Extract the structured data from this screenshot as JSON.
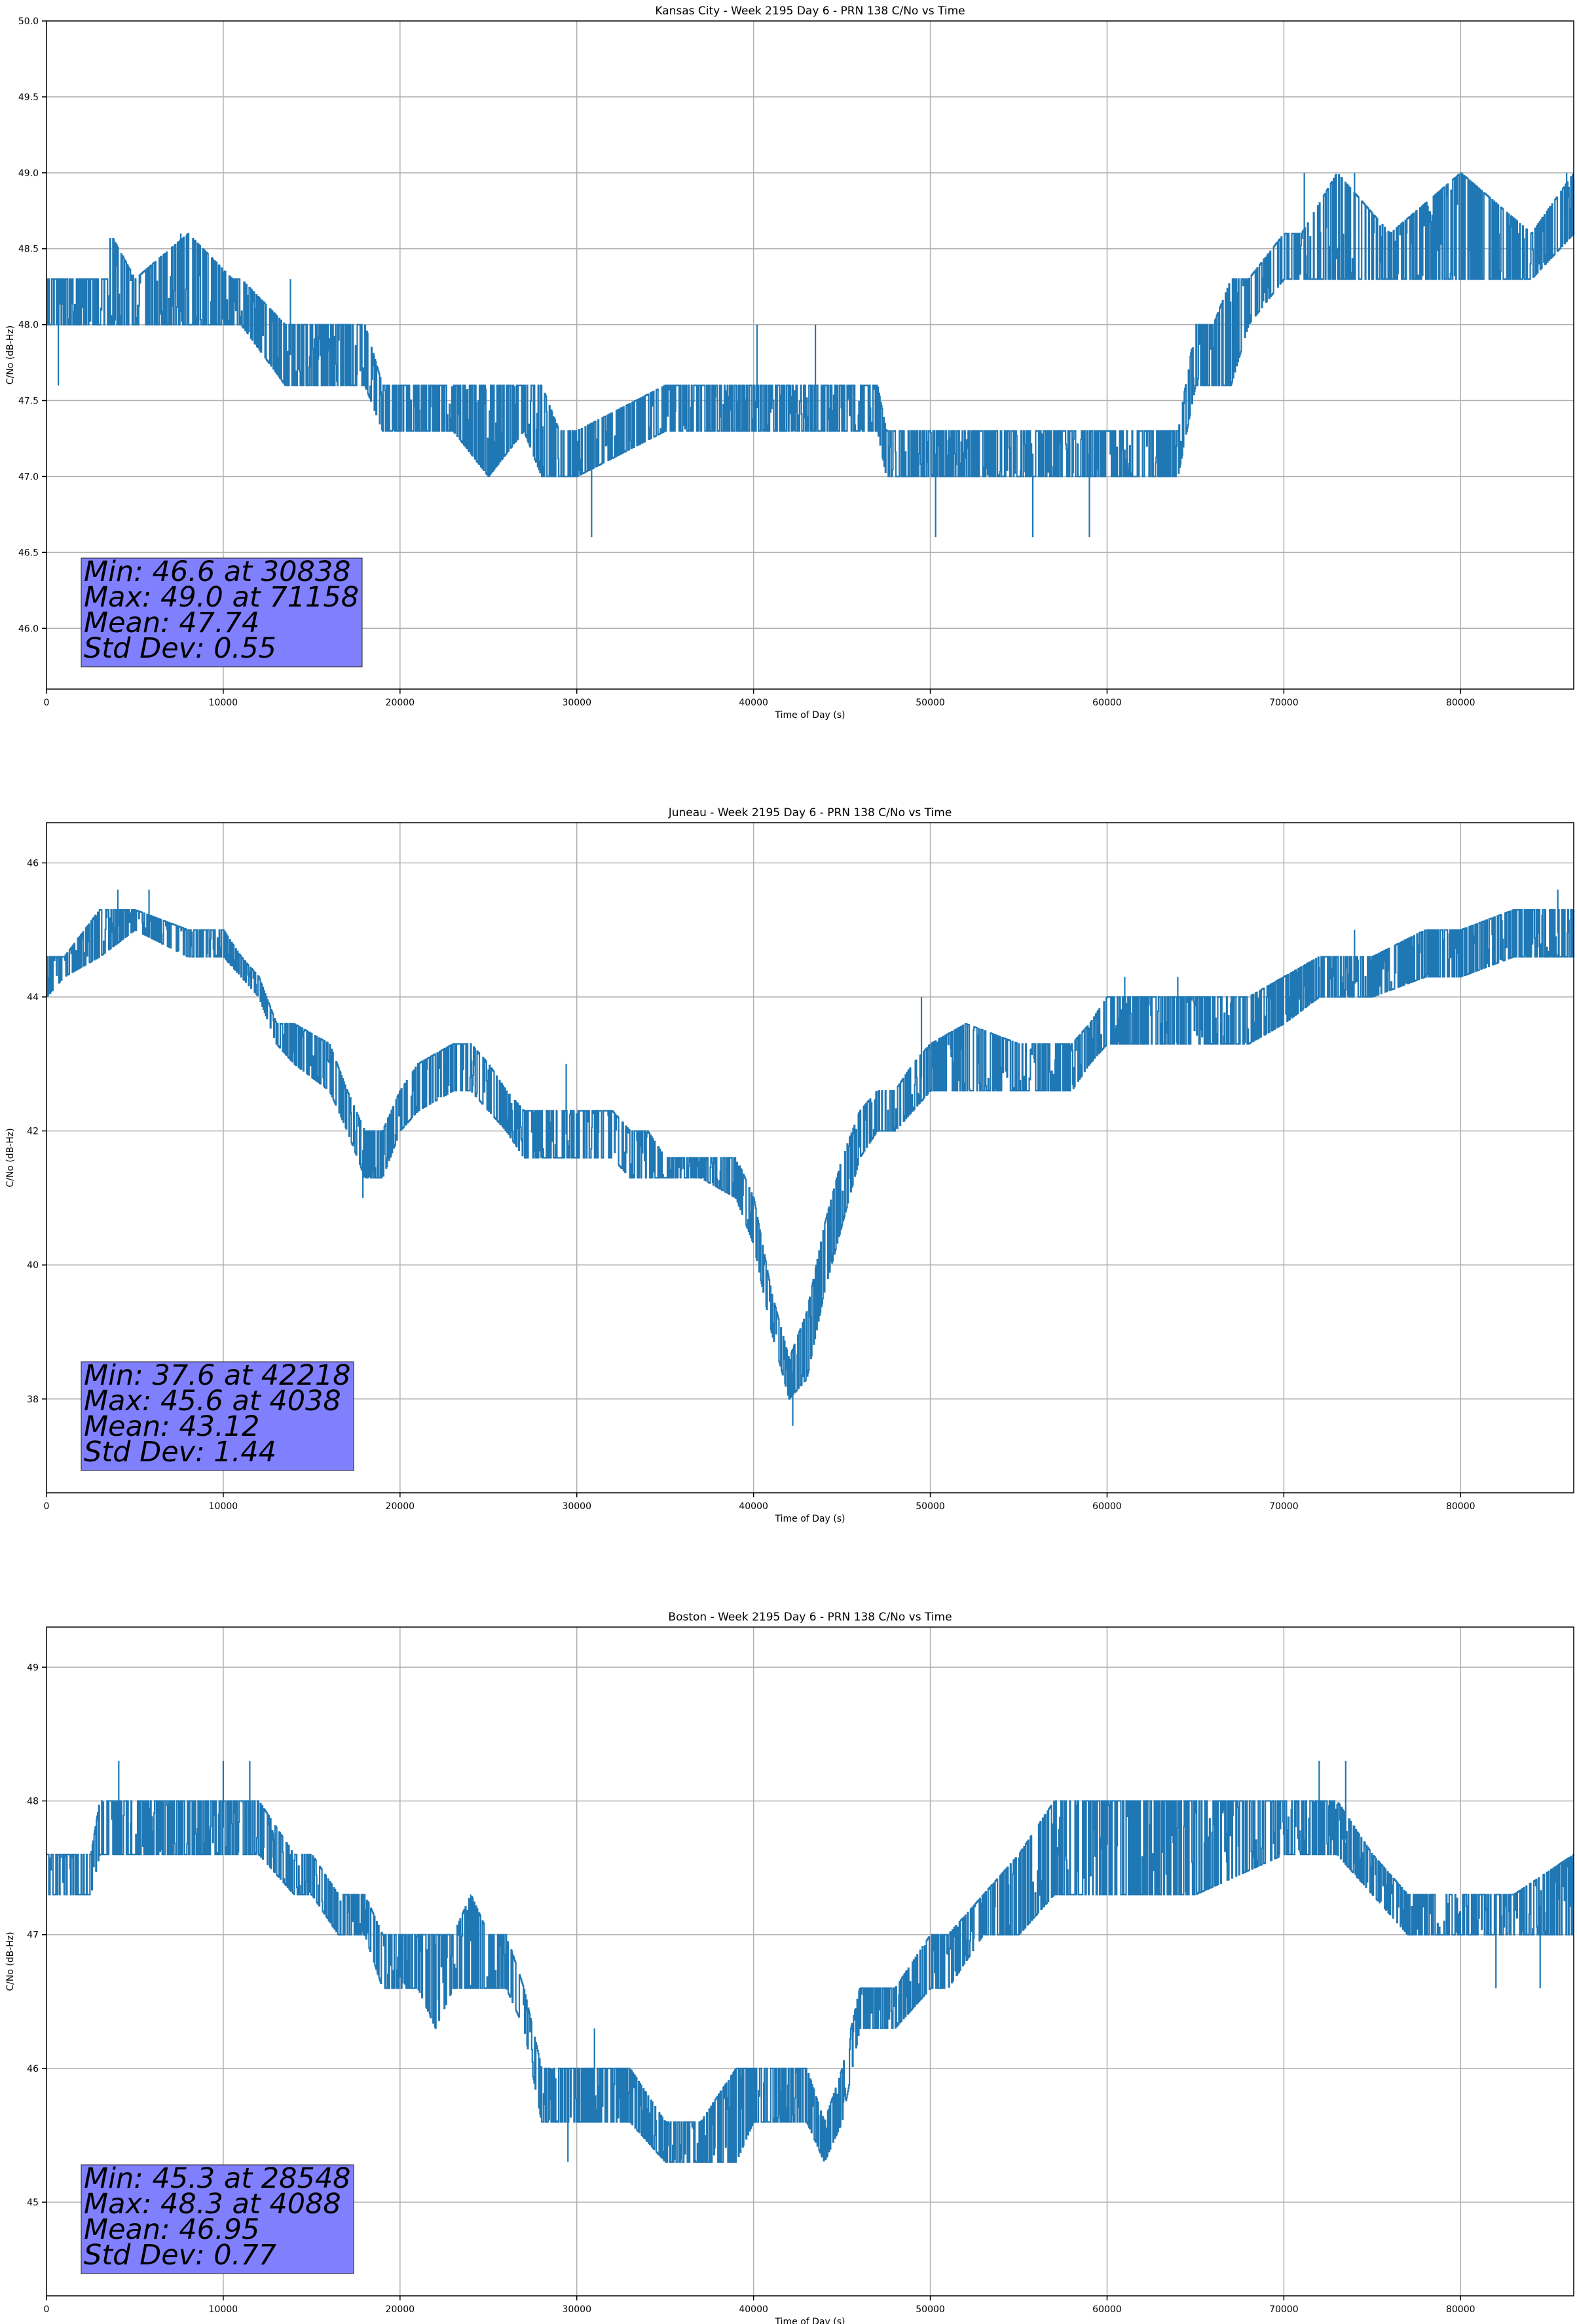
{
  "chart_data": [
    {
      "type": "line",
      "title": "Kansas City - Week 2195 Day 6 - PRN 138 C/No vs Time",
      "xlabel": "Time of Day (s)",
      "ylabel": "C/No (dB-Hz)",
      "xlim": [
        0,
        86400
      ],
      "ylim": [
        45.6,
        50.0
      ],
      "xticks": [
        0,
        10000,
        20000,
        30000,
        40000,
        50000,
        60000,
        70000,
        80000
      ],
      "yticks": [
        46.0,
        46.5,
        47.0,
        47.5,
        48.0,
        48.5,
        49.0,
        49.5,
        50.0
      ],
      "ytick_decimals": 1,
      "grid": true,
      "stats": [
        "Min: 46.6 at 30838",
        "Max: 49.0 at 71158",
        "Mean: 47.74",
        "Std Dev: 0.55"
      ],
      "series": [
        {
          "color": "#1f77b4",
          "x": [
            0,
            3500,
            3600,
            5000,
            8000,
            10500,
            11000,
            13500,
            14000,
            18000,
            19000,
            22000,
            23000,
            25000,
            27000,
            28000,
            29000,
            30000,
            35000,
            40000,
            45000,
            47000,
            47500,
            50000,
            55000,
            60000,
            64000,
            65000,
            66000,
            67000,
            68000,
            70000,
            71000,
            73000,
            76000,
            80000,
            84000,
            86400
          ],
          "lower": [
            48.0,
            48.0,
            48.0,
            48.0,
            48.0,
            48.0,
            48.0,
            47.6,
            47.6,
            47.6,
            47.3,
            47.3,
            47.3,
            47.0,
            47.3,
            47.0,
            47.0,
            47.0,
            47.3,
            47.3,
            47.3,
            47.3,
            47.0,
            47.0,
            47.0,
            47.0,
            47.0,
            47.6,
            47.6,
            47.6,
            48.0,
            48.3,
            48.3,
            48.3,
            48.3,
            48.3,
            48.3,
            48.6
          ],
          "upper": [
            48.3,
            48.3,
            48.6,
            48.3,
            48.6,
            48.3,
            48.3,
            48.0,
            48.0,
            48.0,
            47.6,
            47.6,
            47.6,
            47.6,
            47.6,
            47.6,
            47.3,
            47.3,
            47.6,
            47.6,
            47.6,
            47.6,
            47.3,
            47.3,
            47.3,
            47.3,
            47.3,
            48.0,
            48.0,
            48.3,
            48.3,
            48.6,
            48.6,
            49.0,
            48.6,
            49.0,
            48.6,
            49.0
          ],
          "spikes": [
            [
              670,
              47.6
            ],
            [
              30838,
              46.6
            ],
            [
              50300,
              46.6
            ],
            [
              55800,
              46.6
            ],
            [
              59000,
              46.6
            ],
            [
              40200,
              48.0
            ],
            [
              43500,
              48.0
            ],
            [
              13800,
              48.3
            ],
            [
              7600,
              48.6
            ],
            [
              71158,
              49.0
            ],
            [
              74000,
              49.0
            ],
            [
              86000,
              49.0
            ]
          ]
        }
      ]
    },
    {
      "type": "line",
      "title": "Juneau - Week 2195 Day 6 - PRN 138 C/No vs Time",
      "xlabel": "Time of Day (s)",
      "ylabel": "C/No (dB-Hz)",
      "xlim": [
        0,
        86400
      ],
      "ylim": [
        36.6,
        46.6
      ],
      "xticks": [
        0,
        10000,
        20000,
        30000,
        40000,
        50000,
        60000,
        70000,
        80000
      ],
      "yticks": [
        38,
        40,
        42,
        44,
        46
      ],
      "ytick_decimals": 0,
      "grid": true,
      "stats": [
        "Min: 37.6 at 42218",
        "Max: 45.6 at 4038",
        "Mean: 43.12",
        "Std Dev: 1.44"
      ],
      "series": [
        {
          "color": "#1f77b4",
          "x": [
            0,
            1000,
            3000,
            5000,
            8000,
            10000,
            11000,
            12000,
            13000,
            14000,
            16000,
            17000,
            18000,
            19000,
            20000,
            21000,
            23000,
            24000,
            25000,
            26000,
            27000,
            28000,
            30000,
            32000,
            33000,
            34000,
            35000,
            37000,
            39000,
            40000,
            41000,
            42000,
            43000,
            44000,
            45000,
            46000,
            47000,
            48000,
            49000,
            50000,
            52000,
            55000,
            58000,
            59000,
            60000,
            62000,
            65000,
            68000,
            70000,
            72000,
            75000,
            78000,
            80000,
            83000,
            86400
          ],
          "lower": [
            44.0,
            44.3,
            44.6,
            45.0,
            44.6,
            44.6,
            44.3,
            44.0,
            43.3,
            43.0,
            42.6,
            42.0,
            41.3,
            41.3,
            42.0,
            42.3,
            42.6,
            42.6,
            42.3,
            42.0,
            41.6,
            41.6,
            41.6,
            41.6,
            41.3,
            41.3,
            41.3,
            41.3,
            41.0,
            40.3,
            39.0,
            38.0,
            38.3,
            39.6,
            40.6,
            41.6,
            42.0,
            42.0,
            42.3,
            42.6,
            42.6,
            42.6,
            42.6,
            43.0,
            43.3,
            43.3,
            43.3,
            43.3,
            43.6,
            44.0,
            44.0,
            44.3,
            44.3,
            44.6,
            44.6
          ],
          "upper": [
            44.6,
            44.6,
            45.3,
            45.3,
            45.0,
            45.0,
            44.6,
            44.3,
            43.6,
            43.6,
            43.3,
            42.6,
            42.0,
            42.0,
            42.6,
            43.0,
            43.3,
            43.3,
            43.0,
            42.6,
            42.3,
            42.3,
            42.3,
            42.3,
            42.0,
            42.0,
            41.6,
            41.6,
            41.6,
            41.0,
            39.6,
            38.6,
            39.3,
            40.6,
            41.6,
            42.3,
            42.6,
            42.6,
            43.0,
            43.3,
            43.6,
            43.3,
            43.3,
            43.6,
            44.0,
            44.0,
            44.0,
            44.0,
            44.3,
            44.6,
            44.6,
            45.0,
            45.0,
            45.3,
            45.3
          ],
          "spikes": [
            [
              4038,
              45.6
            ],
            [
              5800,
              45.6
            ],
            [
              17900,
              41.0
            ],
            [
              42218,
              37.6
            ],
            [
              29400,
              43.0
            ],
            [
              49500,
              44.0
            ],
            [
              64000,
              44.3
            ],
            [
              61000,
              44.3
            ],
            [
              74000,
              45.0
            ],
            [
              85500,
              45.6
            ]
          ]
        }
      ]
    },
    {
      "type": "line",
      "title": "Boston - Week 2195 Day 6 - PRN 138 C/No vs Time",
      "xlabel": "Time of Day (s)",
      "ylabel": "C/No (dB-Hz)",
      "xlim": [
        0,
        86400
      ],
      "ylim": [
        44.3,
        49.3
      ],
      "xticks": [
        0,
        10000,
        20000,
        30000,
        40000,
        50000,
        60000,
        70000,
        80000
      ],
      "yticks": [
        45,
        46,
        47,
        48,
        49
      ],
      "ytick_decimals": 0,
      "grid": true,
      "stats": [
        "Min: 45.3 at 28548",
        "Max: 48.3 at 4088",
        "Mean: 46.95",
        "Std Dev: 0.77"
      ],
      "series": [
        {
          "color": "#1f77b4",
          "x": [
            0,
            2500,
            3000,
            5000,
            8000,
            9500,
            11000,
            12000,
            14000,
            15000,
            16500,
            18000,
            19000,
            21000,
            22000,
            23000,
            24000,
            25000,
            26000,
            27000,
            28000,
            29000,
            31000,
            33000,
            35000,
            37000,
            39000,
            40000,
            42000,
            43000,
            44000,
            45000,
            46000,
            47000,
            48000,
            50000,
            51000,
            53000,
            55000,
            57000,
            59000,
            60000,
            62000,
            65000,
            70000,
            73000,
            75000,
            77000,
            80000,
            83000,
            86400
          ],
          "lower": [
            47.3,
            47.3,
            47.6,
            47.6,
            47.6,
            47.6,
            47.6,
            47.6,
            47.3,
            47.3,
            47.0,
            47.0,
            46.6,
            46.6,
            46.3,
            46.6,
            46.6,
            46.6,
            46.6,
            46.3,
            45.6,
            45.6,
            45.6,
            45.6,
            45.3,
            45.3,
            45.3,
            45.6,
            45.6,
            45.6,
            45.3,
            45.6,
            46.3,
            46.3,
            46.3,
            46.6,
            46.6,
            47.0,
            47.0,
            47.3,
            47.3,
            47.3,
            47.3,
            47.3,
            47.6,
            47.6,
            47.3,
            47.0,
            47.0,
            47.0,
            47.0
          ],
          "upper": [
            47.6,
            47.6,
            48.0,
            48.0,
            48.0,
            48.0,
            48.0,
            48.0,
            47.6,
            47.6,
            47.3,
            47.3,
            47.0,
            47.0,
            47.0,
            47.0,
            47.3,
            47.0,
            47.0,
            46.6,
            46.0,
            46.0,
            46.0,
            46.0,
            45.6,
            45.6,
            46.0,
            46.0,
            46.0,
            46.0,
            45.6,
            46.0,
            46.6,
            46.6,
            46.6,
            47.0,
            47.0,
            47.3,
            47.6,
            48.0,
            48.0,
            48.0,
            48.0,
            48.0,
            48.0,
            48.0,
            47.6,
            47.3,
            47.3,
            47.3,
            47.6
          ],
          "spikes": [
            [
              4088,
              48.3
            ],
            [
              10000,
              48.3
            ],
            [
              11500,
              48.3
            ],
            [
              24000,
              47.3
            ],
            [
              29500,
              45.3
            ],
            [
              31000,
              46.3
            ],
            [
              72000,
              48.3
            ],
            [
              73500,
              48.3
            ],
            [
              82000,
              46.6
            ],
            [
              84500,
              46.6
            ]
          ]
        }
      ]
    }
  ]
}
